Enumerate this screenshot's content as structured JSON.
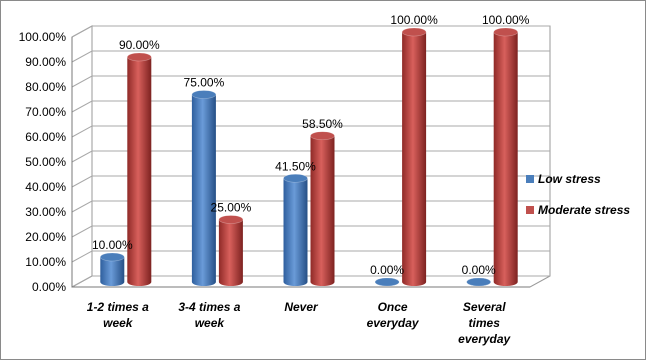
{
  "chart_data": {
    "type": "bar",
    "categories": [
      [
        "1-2 times a",
        "week"
      ],
      [
        "3-4 times a",
        "week"
      ],
      [
        "Never"
      ],
      [
        "Once",
        "everyday"
      ],
      [
        "Several",
        "times",
        "everyday"
      ]
    ],
    "series": [
      {
        "name": "Low stress",
        "values": [
          10,
          75,
          41.5,
          0,
          0
        ],
        "labels": [
          "10.00%",
          "75.00%",
          "41.50%",
          "0.00%",
          "0.00%"
        ],
        "color": "#4a7ebb"
      },
      {
        "name": "Moderate stress",
        "values": [
          90,
          25,
          58.5,
          100,
          100
        ],
        "labels": [
          "90.00%",
          "25.00%",
          "58.50%",
          "100.00%",
          "100.00%"
        ],
        "color": "#c0504d"
      }
    ],
    "y_ticks": [
      "0.00%",
      "10.00%",
      "20.00%",
      "30.00%",
      "40.00%",
      "50.00%",
      "60.00%",
      "70.00%",
      "80.00%",
      "90.00%",
      "100.00%"
    ],
    "ylim": [
      0,
      100
    ],
    "grid": true,
    "legend_position": "right",
    "style": "3d-cylinder"
  }
}
